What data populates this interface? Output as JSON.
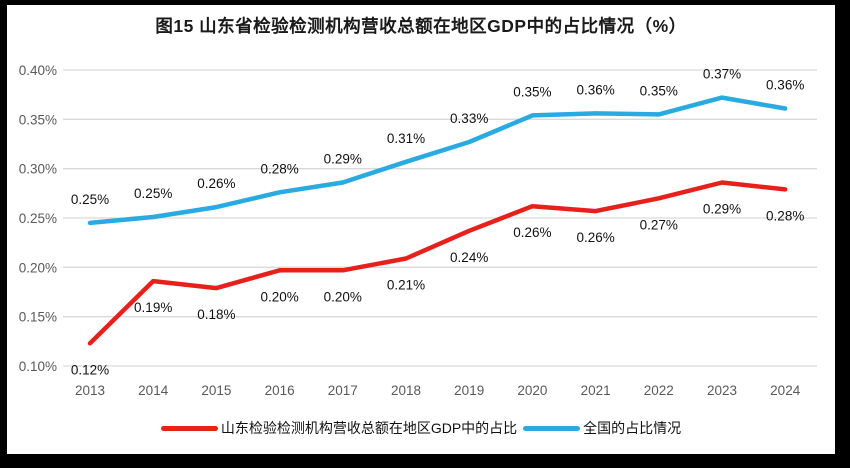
{
  "chart_data": {
    "type": "line",
    "title": "图15  山东省检验检测机构营收总额在地区GDP中的占比情况（%）",
    "categories": [
      "2013",
      "2014",
      "2015",
      "2016",
      "2017",
      "2018",
      "2019",
      "2020",
      "2021",
      "2022",
      "2023",
      "2024"
    ],
    "series": [
      {
        "name": "山东检验检测机构营收总额在地区GDP中的占比",
        "color": "#e8201c",
        "label_position": "below",
        "values": [
          0.123,
          0.186,
          0.179,
          0.197,
          0.197,
          0.209,
          0.237,
          0.262,
          0.257,
          0.27,
          0.286,
          0.279
        ],
        "labels": [
          "0.12%",
          "0.19%",
          "0.18%",
          "0.20%",
          "0.20%",
          "0.21%",
          "0.24%",
          "0.26%",
          "0.26%",
          "0.27%",
          "0.29%",
          "0.28%"
        ]
      },
      {
        "name": "全国的占比情况",
        "color": "#29abe2",
        "label_position": "above",
        "values": [
          0.245,
          0.251,
          0.261,
          0.276,
          0.286,
          0.307,
          0.327,
          0.354,
          0.356,
          0.355,
          0.372,
          0.361
        ],
        "labels": [
          "0.25%",
          "0.25%",
          "0.26%",
          "0.28%",
          "0.29%",
          "0.31%",
          "0.33%",
          "0.35%",
          "0.36%",
          "0.35%",
          "0.37%",
          "0.36%"
        ]
      }
    ],
    "ylim": [
      0.1,
      0.4
    ],
    "ytick_step": 0.05,
    "ytick_labels": [
      "0.10%",
      "0.15%",
      "0.20%",
      "0.25%",
      "0.30%",
      "0.35%",
      "0.40%"
    ],
    "grid": true,
    "grid_color": "#d9d9d9",
    "legend_position": "bottom",
    "xlabel": "",
    "ylabel": ""
  },
  "style": {
    "frame_border_color": "#000000",
    "background_color": "#ffffff",
    "tick_label_color": "#595959",
    "data_label_color": "#111111"
  }
}
